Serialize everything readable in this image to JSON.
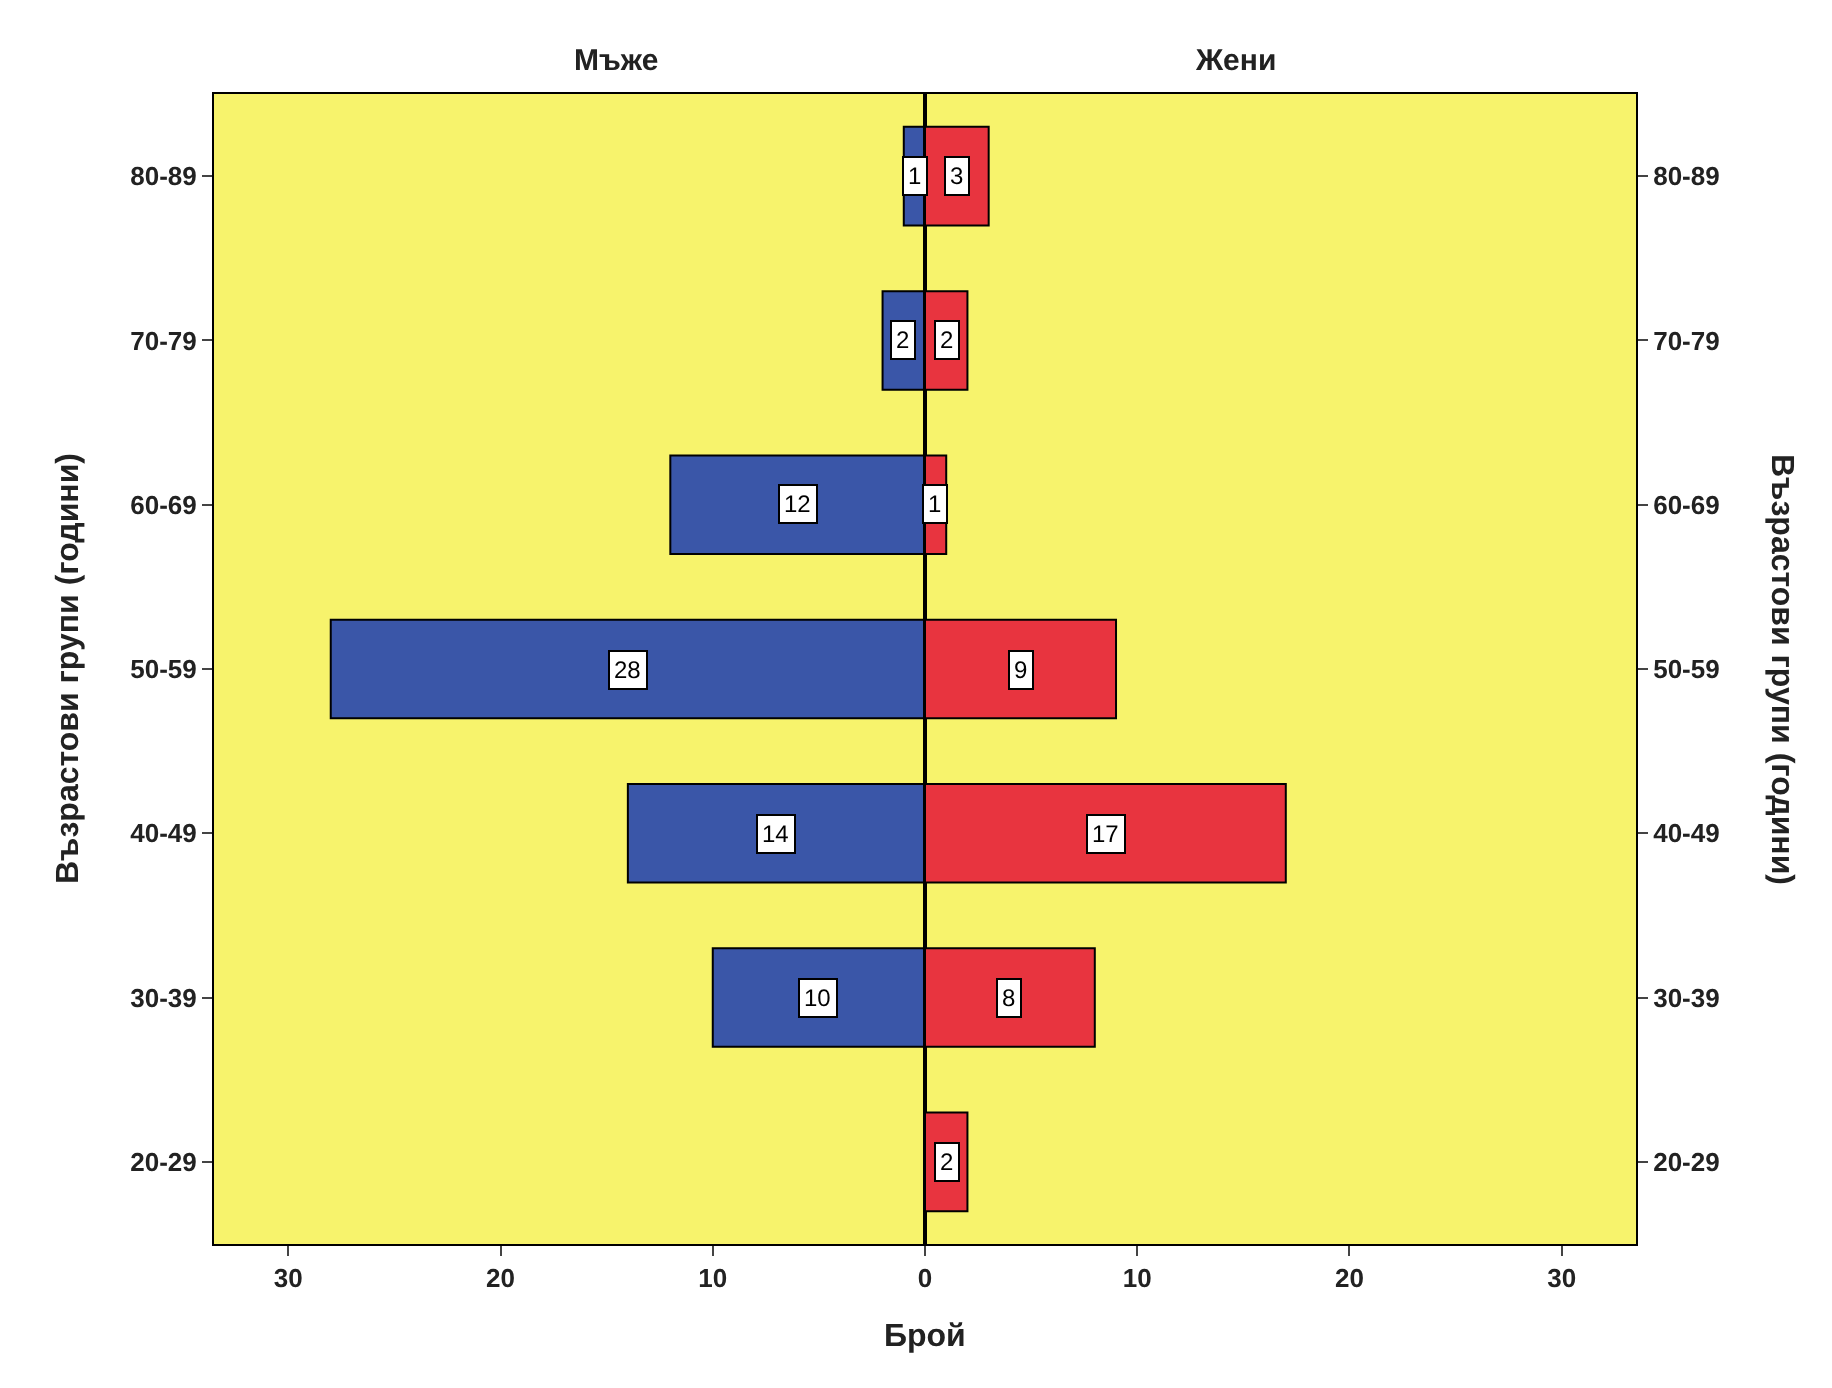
{
  "chart_data": [
    {
      "type": "bar",
      "orientation": "horizontal",
      "title": "Мъже",
      "categories": [
        "80-89",
        "70-79",
        "60-69",
        "50-59",
        "40-49",
        "30-39",
        "20-29"
      ],
      "values": [
        1,
        2,
        12,
        28,
        14,
        10,
        null
      ],
      "color": "#3a56a8",
      "xlim": [
        33.5,
        0
      ],
      "xticks": [
        {
          "value": 0,
          "label": null
        },
        10,
        20,
        30
      ],
      "xlabel": "Брой",
      "ylabel": "Възрастови групи (години)",
      "data_labels": true,
      "grid": false
    },
    {
      "type": "bar",
      "orientation": "horizontal",
      "title": "Жени",
      "categories": [
        "80-89",
        "70-79",
        "60-69",
        "50-59",
        "40-49",
        "30-39",
        "20-29"
      ],
      "values": [
        3,
        2,
        1,
        9,
        17,
        8,
        2
      ],
      "color": "#e8343f",
      "xlim": [
        0,
        33.5
      ],
      "xticks": [
        0,
        10,
        20,
        30
      ],
      "ylabel": "Възрастови групи (години)",
      "data_labels": true,
      "grid": false
    }
  ]
}
